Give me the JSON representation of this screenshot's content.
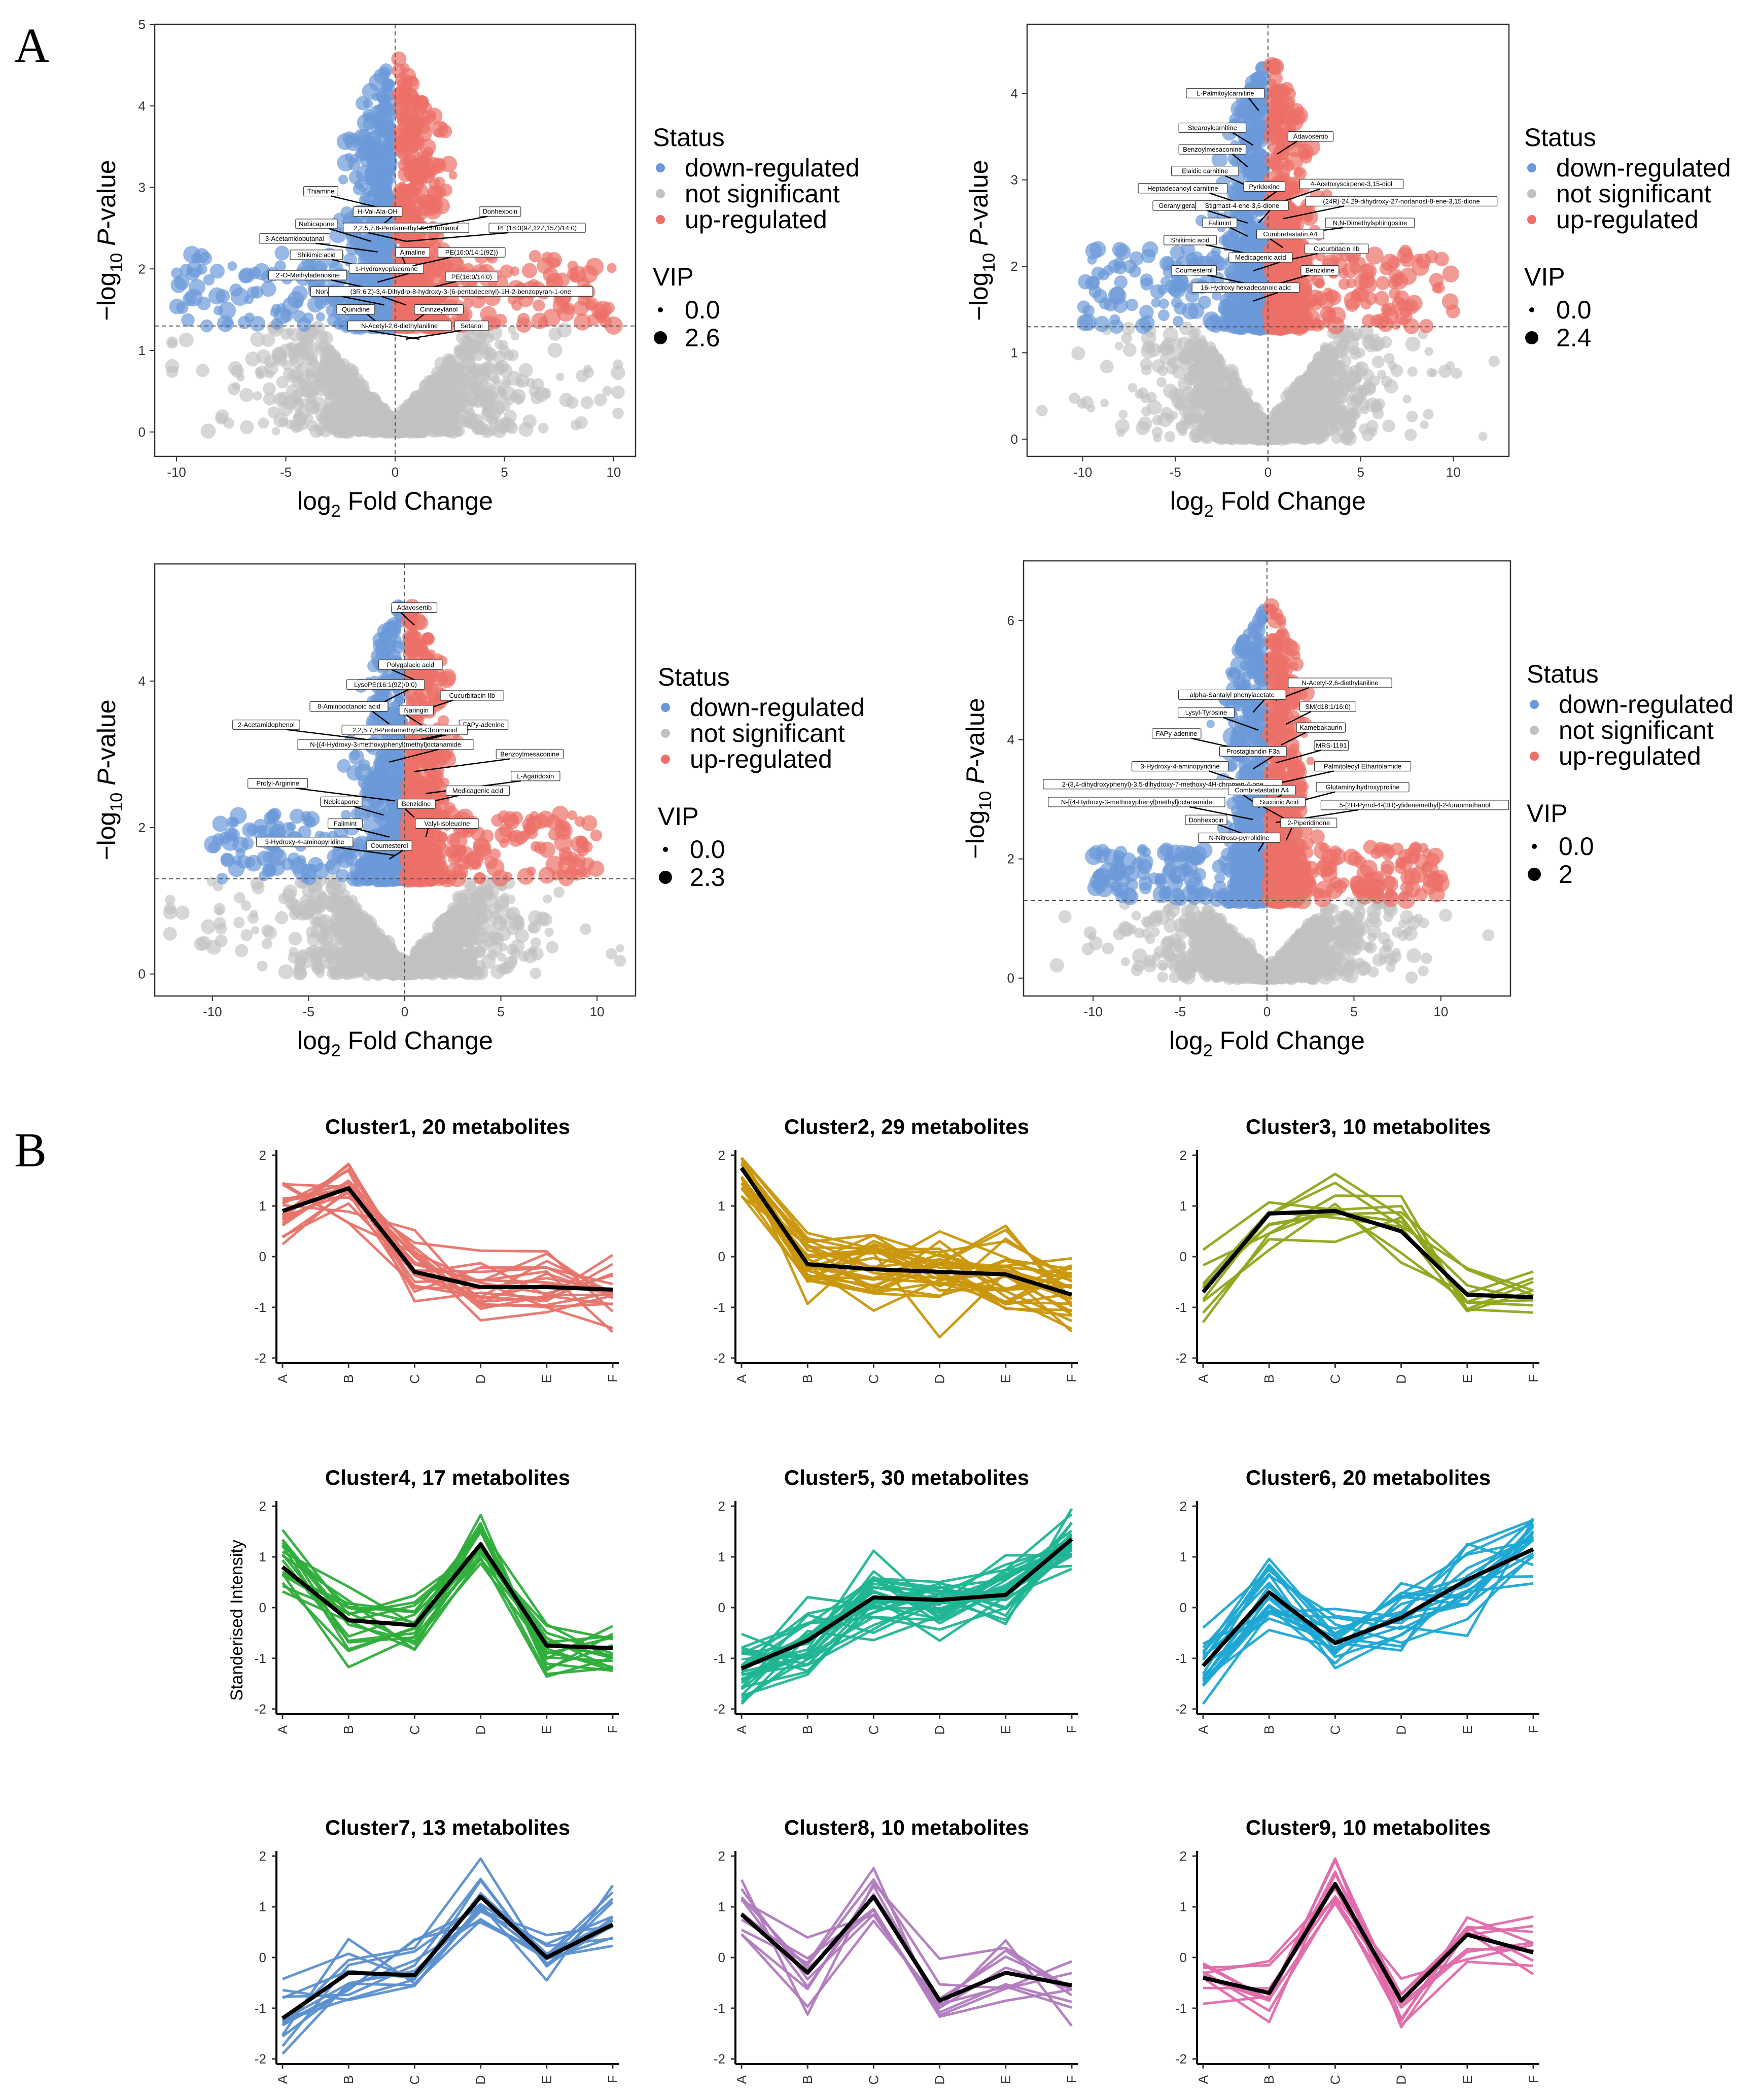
{
  "panel_a_label": "A",
  "panel_b_label": "B",
  "legend": {
    "status_title": "Status",
    "status_items": [
      "down-regulated",
      "not significant",
      "up-regulated"
    ],
    "vip_title": "VIP"
  },
  "colors": {
    "down": "#6b98d9",
    "ns": "#c2c2c2",
    "up": "#ec7068"
  },
  "axis_labels": {
    "x_main": "log",
    "x_sub": "2",
    "x_rest": " Fold Change",
    "y_prefix": "−log",
    "y_sub": "10",
    "y_p": "P",
    "y_rest": "-value"
  },
  "chart_data": [
    {
      "type": "scatter",
      "name": "volcano-1",
      "xlim": [
        -11,
        11
      ],
      "ylim": [
        -0.3,
        5
      ],
      "xticks": [
        -10,
        -5,
        0,
        5,
        10
      ],
      "yticks": [
        0,
        1,
        2,
        3,
        4,
        5
      ],
      "threshold_y": 1.3,
      "vip_legend": [
        "0.0",
        "2.6"
      ],
      "seed": 11,
      "annotations": [
        {
          "text": "Thiamine",
          "x": -3.4,
          "y": 2.95
        },
        {
          "text": "H-Val-Ala-OH",
          "x": -0.8,
          "y": 2.7
        },
        {
          "text": "Nebicapone",
          "x": -3.6,
          "y": 2.55
        },
        {
          "text": "2,2,5,7,8-Pentamethyl-6-Chromanol",
          "x": 0.5,
          "y": 2.5
        },
        {
          "text": "3-Acetamidobutanal",
          "x": -4.6,
          "y": 2.37
        },
        {
          "text": "Shikimic acid",
          "x": -3.6,
          "y": 2.17
        },
        {
          "text": "Ajmaline",
          "x": 0.8,
          "y": 2.2
        },
        {
          "text": "1-Hydroxyeplacorone",
          "x": -0.4,
          "y": 2.0
        },
        {
          "text": "2'-O-Methyladenosine",
          "x": -4.0,
          "y": 1.92
        },
        {
          "text": "Norvaline",
          "x": -3.0,
          "y": 1.72
        },
        {
          "text": "Quinidine",
          "x": -1.8,
          "y": 1.5
        },
        {
          "text": "Donhexocin",
          "x": 4.8,
          "y": 2.7
        },
        {
          "text": "PE(18:3(9Z,12Z,15Z)/14:0)",
          "x": 6.5,
          "y": 2.5
        },
        {
          "text": "PE(16:0/14:1(9Z))",
          "x": 3.5,
          "y": 2.2
        },
        {
          "text": "PE(16:0/14:0)",
          "x": 3.5,
          "y": 1.9
        },
        {
          "text": "(3R,6'Z)-3,4-Dihydro-8-hydroxy-3-(6-pentadecenyl)-1H-2-benzopyran-1-one",
          "x": 3.0,
          "y": 1.72
        },
        {
          "text": "Cinnzeylanol",
          "x": 2.0,
          "y": 1.5
        },
        {
          "text": "N-Acetyl-2,6-diethylaniline",
          "x": 0.2,
          "y": 1.3
        },
        {
          "text": "Setariol",
          "x": 3.5,
          "y": 1.3
        }
      ]
    },
    {
      "type": "scatter",
      "name": "volcano-2",
      "xlim": [
        -13,
        13
      ],
      "ylim": [
        -0.2,
        4.8
      ],
      "xticks": [
        -10,
        -5,
        0,
        5,
        10
      ],
      "yticks": [
        0,
        1,
        2,
        3,
        4
      ],
      "threshold_y": 1.3,
      "vip_legend": [
        "0.0",
        "2.4"
      ],
      "seed": 22,
      "annotations": [
        {
          "text": "L-Palmitoylcarnitine",
          "x": -2.3,
          "y": 4.0
        },
        {
          "text": "Stearoylcarnitine",
          "x": -3.0,
          "y": 3.6
        },
        {
          "text": "Benzoylmesaconine",
          "x": -3.0,
          "y": 3.35
        },
        {
          "text": "Adavosertib",
          "x": 2.3,
          "y": 3.5
        },
        {
          "text": "Elaidic carnitine",
          "x": -3.4,
          "y": 3.1
        },
        {
          "text": "Heptadecanoyl carnitine",
          "x": -4.6,
          "y": 2.9
        },
        {
          "text": "Pyridoxine",
          "x": -0.2,
          "y": 2.92
        },
        {
          "text": "4-Acetoxyscirpene-3,15-diol",
          "x": 4.5,
          "y": 2.95
        },
        {
          "text": "Geranylgeranyl-PP",
          "x": -4.4,
          "y": 2.7
        },
        {
          "text": "Stigmast-4-ene-3,6-dione",
          "x": -1.4,
          "y": 2.7
        },
        {
          "text": "(24R)-24,29-dihydroxy-27-norlanost-8-ene-3,15-dione",
          "x": 7.2,
          "y": 2.75
        },
        {
          "text": "Falimint",
          "x": -2.6,
          "y": 2.5
        },
        {
          "text": "N,N-Dimethylsphingosine",
          "x": 5.5,
          "y": 2.5
        },
        {
          "text": "Combretastatin A4",
          "x": 1.2,
          "y": 2.37
        },
        {
          "text": "Shikimic acid",
          "x": -4.2,
          "y": 2.3
        },
        {
          "text": "Cucurbitacin IIb",
          "x": 3.7,
          "y": 2.2
        },
        {
          "text": "Medicagenic acid",
          "x": -0.4,
          "y": 2.1
        },
        {
          "text": "Coumesterol",
          "x": -4.0,
          "y": 1.95
        },
        {
          "text": "Benzidine",
          "x": 2.8,
          "y": 1.95
        },
        {
          "text": "16-Hydroxy hexadecanoic acid",
          "x": -1.2,
          "y": 1.75
        }
      ]
    },
    {
      "type": "scatter",
      "name": "volcano-3",
      "xlim": [
        -13,
        12
      ],
      "ylim": [
        -0.3,
        5.6
      ],
      "xticks": [
        -10,
        -5,
        0,
        5,
        10
      ],
      "yticks": [
        0,
        2,
        4
      ],
      "threshold_y": 1.3,
      "vip_legend": [
        "0.0",
        "2.3"
      ],
      "seed": 33,
      "annotations": [
        {
          "text": "Adavosertib",
          "x": 0.5,
          "y": 5.0
        },
        {
          "text": "Polygalacic acid",
          "x": 0.3,
          "y": 4.22
        },
        {
          "text": "LysoPE(16:1(9Z)/0:0)",
          "x": -1.0,
          "y": 3.95
        },
        {
          "text": "Cucurbitacin IIb",
          "x": 3.5,
          "y": 3.8
        },
        {
          "text": "8-Aminooctanoic acid",
          "x": -2.9,
          "y": 3.65
        },
        {
          "text": "Naringin",
          "x": 0.6,
          "y": 3.6
        },
        {
          "text": "FAPy-adenine",
          "x": 4.1,
          "y": 3.4
        },
        {
          "text": "2-Acetamidophenol",
          "x": -7.2,
          "y": 3.4
        },
        {
          "text": "2,2,5,7,8-Pentamethyl-6-Chromanol",
          "x": 0.0,
          "y": 3.33
        },
        {
          "text": "Benzoylmesaconine",
          "x": 6.5,
          "y": 3.0
        },
        {
          "text": "N-[(4-Hydroxy-3-methoxyphenyl)methyl]octanamide",
          "x": -1.0,
          "y": 3.13
        },
        {
          "text": "L-Agaridoxin",
          "x": 6.8,
          "y": 2.7
        },
        {
          "text": "Prolyl-Arginine",
          "x": -6.6,
          "y": 2.6
        },
        {
          "text": "Medicagenic acid",
          "x": 3.8,
          "y": 2.5
        },
        {
          "text": "Nebicapone",
          "x": -3.3,
          "y": 2.35
        },
        {
          "text": "Benzidine",
          "x": 0.6,
          "y": 2.32
        },
        {
          "text": "Falimint",
          "x": -3.1,
          "y": 2.05
        },
        {
          "text": "Valyl-Isoleucine",
          "x": 2.2,
          "y": 2.05
        },
        {
          "text": "3-Hydroxy-4-aminopyridine",
          "x": -5.2,
          "y": 1.8
        },
        {
          "text": "Coumesterol",
          "x": -0.8,
          "y": 1.75
        }
      ]
    },
    {
      "type": "scatter",
      "name": "volcano-4",
      "xlim": [
        -14,
        14
      ],
      "ylim": [
        -0.3,
        7.0
      ],
      "xticks": [
        -10,
        -5,
        0,
        5,
        10
      ],
      "yticks": [
        0,
        2,
        4,
        6
      ],
      "threshold_y": 1.3,
      "vip_legend": [
        "0.0",
        "2"
      ],
      "seed": 44,
      "annotations": [
        {
          "text": "N-Acetyl-2,6-diethylaniline",
          "x": 4.2,
          "y": 4.95
        },
        {
          "text": "alpha-Santalyl phenylacetate",
          "x": -2.0,
          "y": 4.75
        },
        {
          "text": "SM(d18:1/16:0)",
          "x": 3.5,
          "y": 4.55
        },
        {
          "text": "Lysyl-Tyrosine",
          "x": -3.5,
          "y": 4.45
        },
        {
          "text": "Kamebakaurin",
          "x": 3.1,
          "y": 4.2
        },
        {
          "text": "FAPy-adenine",
          "x": -5.2,
          "y": 4.1
        },
        {
          "text": "MRS-1191",
          "x": 3.7,
          "y": 3.9
        },
        {
          "text": "Prostaglandin F3a",
          "x": -0.8,
          "y": 3.8
        },
        {
          "text": "3-Hydroxy-4-aminopyridine",
          "x": -5.0,
          "y": 3.55
        },
        {
          "text": "Palmitoleoyl Ethanolamide",
          "x": 5.5,
          "y": 3.55
        },
        {
          "text": "2-(3,4-dihydroxyphenyl)-3,5-dihydroxy-7-methoxy-4H-chromen-4-one",
          "x": -6.0,
          "y": 3.25
        },
        {
          "text": "Glutaminylhydroxyproline",
          "x": 5.5,
          "y": 3.2
        },
        {
          "text": "Combretastatin A4",
          "x": -0.3,
          "y": 3.15
        },
        {
          "text": "N-[(4-Hydroxy-3-methoxyphenyl)methyl]octanamide",
          "x": -7.5,
          "y": 2.95
        },
        {
          "text": "Succinic Acid",
          "x": 0.7,
          "y": 2.95
        },
        {
          "text": "5-[2H-Pyrrol-4-(3H)-ylidenemethyl]-2-furanmethanol",
          "x": 8.5,
          "y": 2.9
        },
        {
          "text": "Donhexocin",
          "x": -3.5,
          "y": 2.65
        },
        {
          "text": "2-Piperidinone",
          "x": 2.4,
          "y": 2.6
        },
        {
          "text": "N-Nitroso-pyrrolidine",
          "x": -1.6,
          "y": 2.35
        }
      ]
    },
    {
      "type": "line",
      "name": "Cluster1",
      "title": "Cluster1, 20 metabolites",
      "color": "#e7746c",
      "n": 20,
      "categories": [
        "A",
        "B",
        "C",
        "D",
        "E",
        "F"
      ],
      "center": [
        0.9,
        1.35,
        -0.3,
        -0.6,
        -0.6,
        -0.65
      ],
      "ylim": [
        -2.1,
        2.1
      ],
      "yticks": [
        -2,
        -1,
        0,
        1,
        2
      ],
      "seed": 101
    },
    {
      "type": "line",
      "name": "Cluster2",
      "title": "Cluster2, 29 metabolites",
      "color": "#c9960c",
      "n": 29,
      "categories": [
        "A",
        "B",
        "C",
        "D",
        "E",
        "F"
      ],
      "center": [
        1.75,
        -0.15,
        -0.25,
        -0.3,
        -0.35,
        -0.75
      ],
      "ylim": [
        -2.1,
        2.1
      ],
      "yticks": [
        -2,
        -1,
        0,
        1,
        2
      ],
      "seed": 102
    },
    {
      "type": "line",
      "name": "Cluster3",
      "title": "Cluster3, 10 metabolites",
      "color": "#8fa61c",
      "n": 10,
      "categories": [
        "A",
        "B",
        "C",
        "D",
        "E",
        "F"
      ],
      "center": [
        -0.7,
        0.85,
        0.9,
        0.5,
        -0.75,
        -0.8
      ],
      "ylim": [
        -2.1,
        2.1
      ],
      "yticks": [
        -2,
        -1,
        0,
        1,
        2
      ],
      "seed": 103
    },
    {
      "type": "line",
      "name": "Cluster4",
      "title": "Cluster4, 17 metabolites",
      "color": "#2ead3a",
      "n": 17,
      "categories": [
        "A",
        "B",
        "C",
        "D",
        "E",
        "F"
      ],
      "center": [
        0.8,
        -0.25,
        -0.35,
        1.25,
        -0.75,
        -0.8
      ],
      "ylim": [
        -2.1,
        2.1
      ],
      "yticks": [
        -2,
        -1,
        0,
        1,
        2
      ],
      "seed": 104
    },
    {
      "type": "line",
      "name": "Cluster5",
      "title": "Cluster5, 30 metabolites",
      "color": "#1fb594",
      "n": 30,
      "categories": [
        "A",
        "B",
        "C",
        "D",
        "E",
        "F"
      ],
      "center": [
        -1.2,
        -0.65,
        0.2,
        0.15,
        0.25,
        1.35
      ],
      "ylim": [
        -2.1,
        2.1
      ],
      "yticks": [
        -2,
        -1,
        0,
        1,
        2
      ],
      "seed": 105
    },
    {
      "type": "line",
      "name": "Cluster6",
      "title": "Cluster6, 20 metabolites",
      "color": "#1ea7d3",
      "n": 20,
      "categories": [
        "A",
        "B",
        "C",
        "D",
        "E",
        "F"
      ],
      "center": [
        -1.15,
        0.3,
        -0.7,
        -0.2,
        0.55,
        1.15
      ],
      "ylim": [
        -2.1,
        2.1
      ],
      "yticks": [
        -2,
        -1,
        0,
        1,
        2
      ],
      "seed": 106
    },
    {
      "type": "line",
      "name": "Cluster7",
      "title": "Cluster7, 13 metabolites",
      "color": "#5b8fcf",
      "n": 13,
      "categories": [
        "A",
        "B",
        "C",
        "D",
        "E",
        "F"
      ],
      "center": [
        -1.2,
        -0.3,
        -0.35,
        1.2,
        0.0,
        0.65
      ],
      "ylim": [
        -2.1,
        2.1
      ],
      "yticks": [
        -2,
        -1,
        0,
        1,
        2
      ],
      "seed": 107
    },
    {
      "type": "line",
      "name": "Cluster8",
      "title": "Cluster8, 10 metabolites",
      "color": "#b07bbd",
      "n": 10,
      "categories": [
        "A",
        "B",
        "C",
        "D",
        "E",
        "F"
      ],
      "center": [
        0.85,
        -0.3,
        1.2,
        -0.85,
        -0.3,
        -0.55
      ],
      "ylim": [
        -2.1,
        2.1
      ],
      "yticks": [
        -2,
        -1,
        0,
        1,
        2
      ],
      "seed": 108
    },
    {
      "type": "line",
      "name": "Cluster9",
      "title": "Cluster9, 10 metabolites",
      "color": "#df6aaa",
      "n": 10,
      "categories": [
        "A",
        "B",
        "C",
        "D",
        "E",
        "F"
      ],
      "center": [
        -0.4,
        -0.7,
        1.45,
        -0.85,
        0.45,
        0.1
      ],
      "ylim": [
        -2.1,
        2.1
      ],
      "yticks": [
        -2,
        -1,
        0,
        1,
        2
      ],
      "seed": 109
    }
  ],
  "b_ylabel": "Standerised Intensity"
}
